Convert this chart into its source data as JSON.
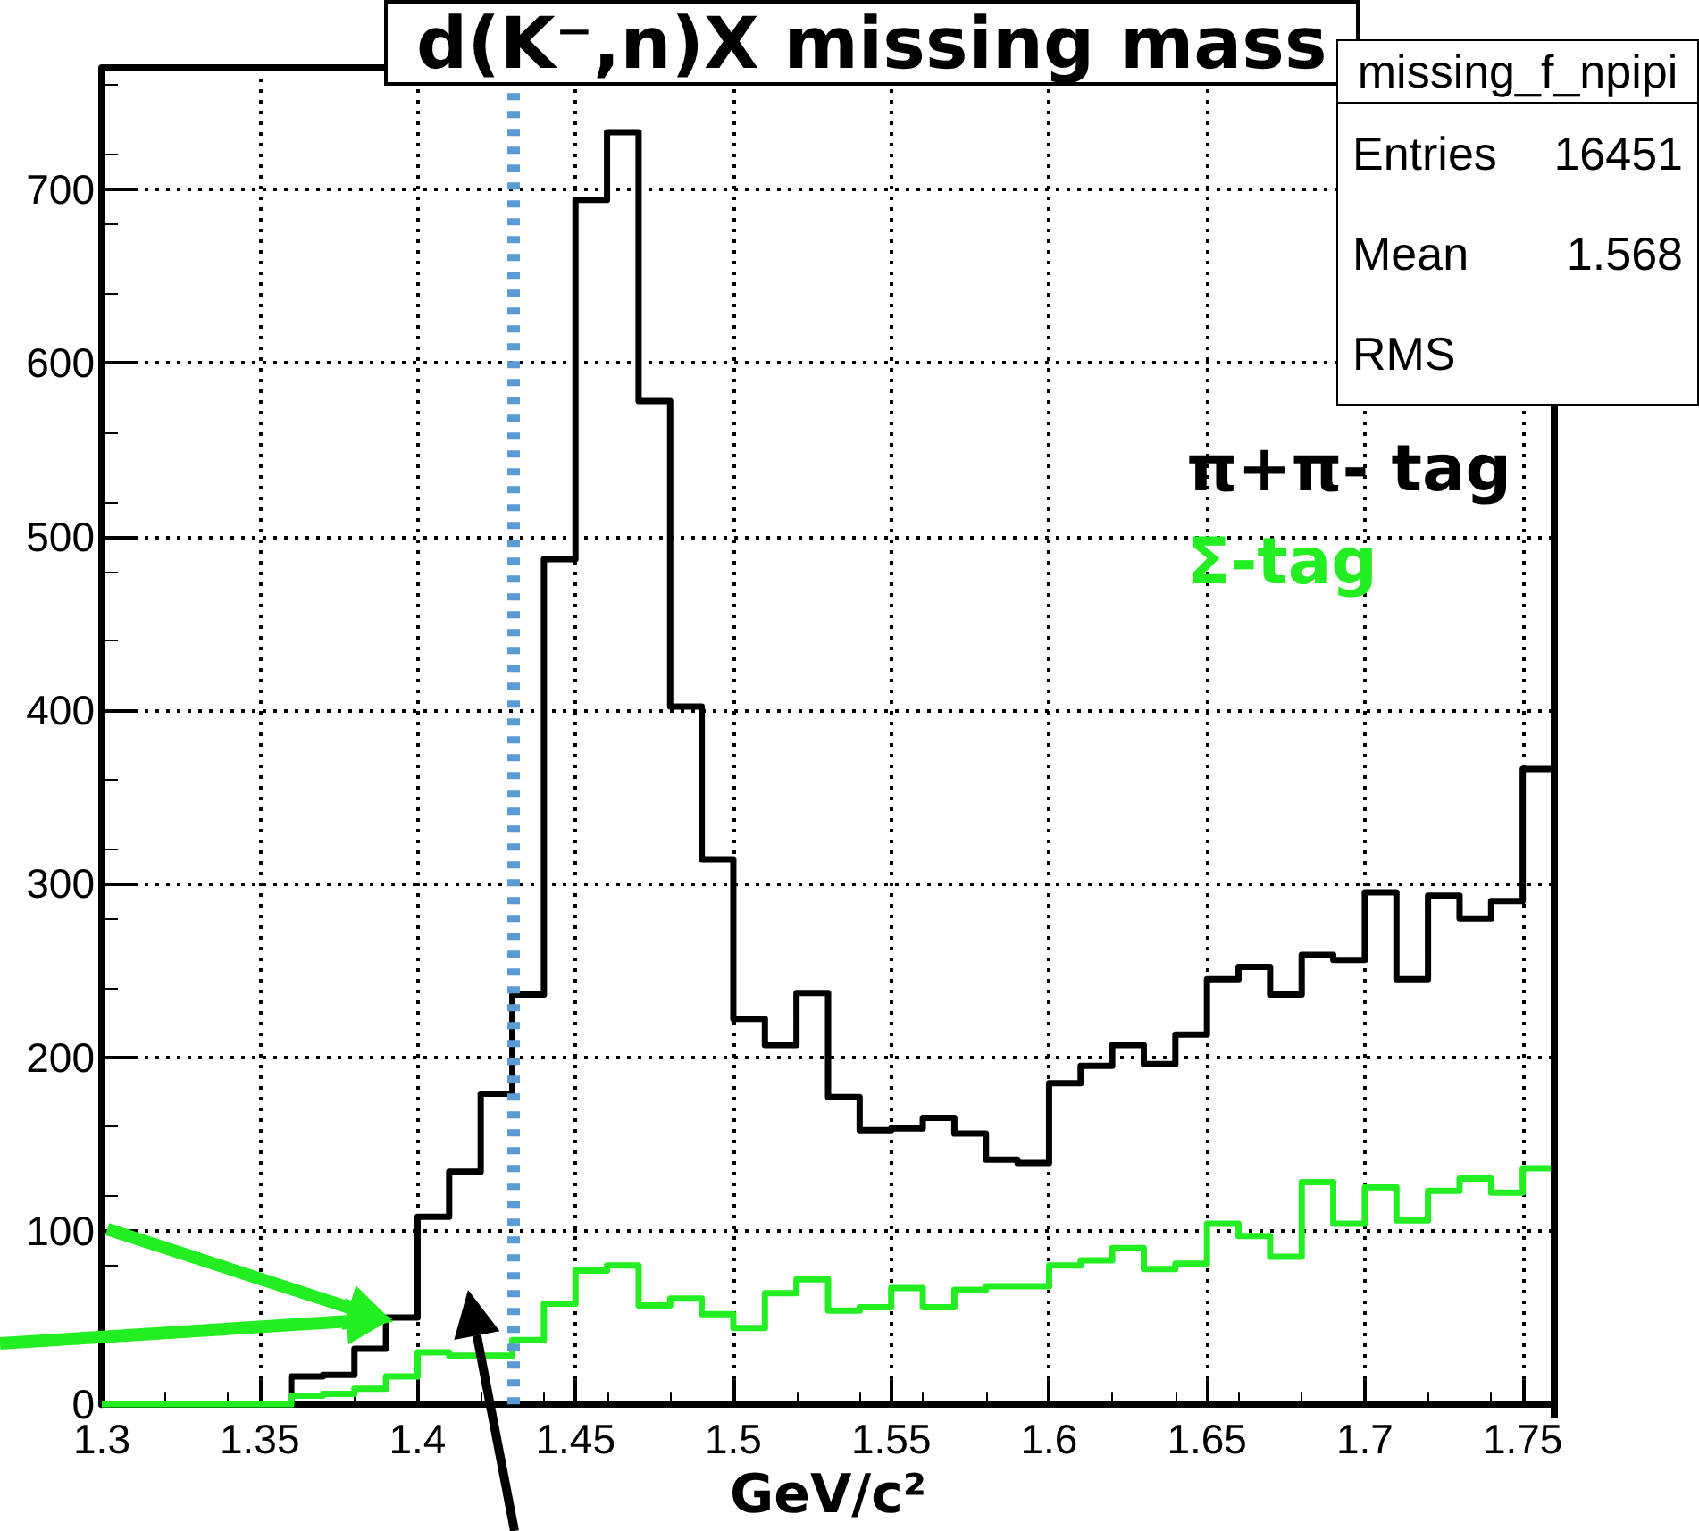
{
  "chart_data": {
    "type": "histogram",
    "title": "d(K⁻,n)X missing mass",
    "xlabel": "GeV/c²",
    "annotations": [
      "missing_f_npipi",
      "Entries 16451",
      "Mean 1.568",
      "RMS"
    ],
    "bins": [
      1.3,
      1.31,
      1.32,
      1.33,
      1.34,
      1.35,
      1.36,
      1.37,
      1.38,
      1.39,
      1.4,
      1.41,
      1.42,
      1.43,
      1.44,
      1.45,
      1.46,
      1.47,
      1.48,
      1.49,
      1.5,
      1.51,
      1.52,
      1.53,
      1.54,
      1.55,
      1.56,
      1.57,
      1.58,
      1.59,
      1.6,
      1.61,
      1.62,
      1.63,
      1.64,
      1.65,
      1.66,
      1.67,
      1.68,
      1.69,
      1.7,
      1.71,
      1.72,
      1.73,
      1.74,
      1.75,
      1.76
    ],
    "series": [
      {
        "name": "π+π- tag",
        "color": "#000000",
        "values": [
          0,
          0,
          0,
          0,
          0,
          0,
          16,
          17,
          32,
          50,
          108,
          134,
          179,
          236,
          487,
          694,
          733,
          578,
          402,
          314,
          222,
          207,
          237,
          177,
          158,
          159,
          165,
          156,
          141,
          139,
          185,
          195,
          207,
          196,
          213,
          245,
          252,
          236,
          259,
          256,
          295,
          245,
          293,
          280,
          290,
          366
        ]
      },
      {
        "name": "Σ-tag",
        "color": "#22ee22",
        "values": [
          0,
          0,
          0,
          0,
          0,
          0,
          5,
          6,
          9,
          16,
          30,
          28,
          28,
          37,
          58,
          77,
          80,
          57,
          61,
          52,
          44,
          64,
          72,
          54,
          56,
          67,
          56,
          66,
          68,
          68,
          80,
          83,
          90,
          78,
          81,
          104,
          97,
          85,
          128,
          104,
          125,
          106,
          123,
          130,
          122,
          136
        ]
      }
    ],
    "xlim": [
      1.3,
      1.76
    ],
    "xticks": [
      1.3,
      1.35,
      1.4,
      1.45,
      1.5,
      1.55,
      1.6,
      1.65,
      1.7,
      1.75
    ],
    "ylim": [
      0,
      770
    ],
    "yticks": [
      0,
      100,
      200,
      300,
      400,
      500,
      600,
      700
    ],
    "ref_lines": [
      {
        "axis": "x",
        "value": 1.43,
        "color": "#5b9bd5",
        "line_style": "dotted"
      }
    ],
    "grid": true,
    "legend": "right"
  }
}
